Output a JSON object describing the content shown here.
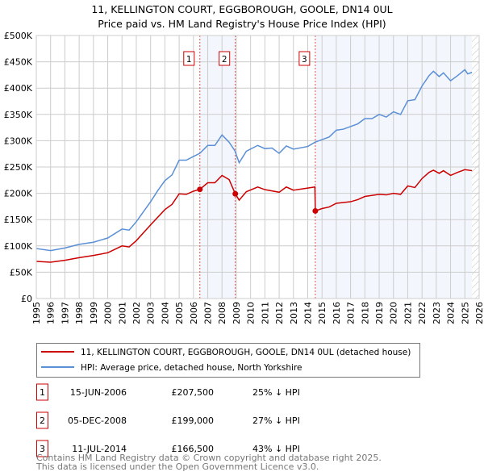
{
  "chart_data": {
    "type": "line",
    "title": "11, KELLINGTON COURT, EGGBOROUGH, GOOLE, DN14 0UL",
    "subtitle": "Price paid vs. HM Land Registry's House Price Index (HPI)",
    "xlim": [
      1995,
      2026
    ],
    "ylim": [
      0,
      500000
    ],
    "x_ticks": [
      "1995",
      "1996",
      "1997",
      "1998",
      "1999",
      "2000",
      "2001",
      "2002",
      "2003",
      "2004",
      "2005",
      "2006",
      "2007",
      "2008",
      "2009",
      "2010",
      "2011",
      "2012",
      "2013",
      "2014",
      "2015",
      "2016",
      "2017",
      "2018",
      "2019",
      "2020",
      "2021",
      "2022",
      "2023",
      "2024",
      "2025",
      "2026"
    ],
    "y_ticks": [
      {
        "v": 0,
        "label": "£0"
      },
      {
        "v": 50000,
        "label": "£50K"
      },
      {
        "v": 100000,
        "label": "£100K"
      },
      {
        "v": 150000,
        "label": "£150K"
      },
      {
        "v": 200000,
        "label": "£200K"
      },
      {
        "v": 250000,
        "label": "£250K"
      },
      {
        "v": 300000,
        "label": "£300K"
      },
      {
        "v": 350000,
        "label": "£350K"
      },
      {
        "v": 400000,
        "label": "£400K"
      },
      {
        "v": 450000,
        "label": "£450K"
      },
      {
        "v": 500000,
        "label": "£500K"
      }
    ],
    "grid": true,
    "series": [
      {
        "name": "11, KELLINGTON COURT, EGGBOROUGH, GOOLE, DN14 0UL (detached house)",
        "color": "#cc0000",
        "x": [
          1995,
          1996,
          1997,
          1998,
          1999,
          2000,
          2001,
          2001.5,
          2002,
          2003,
          2004,
          2004.5,
          2005,
          2005.5,
          2006,
          2006.45,
          2007,
          2007.5,
          2008,
          2008.5,
          2008.93,
          2009.2,
          2009.7,
          2010.5,
          2011,
          2012,
          2012.5,
          2013,
          2014,
          2014.5,
          2014.53,
          2015,
          2015.5,
          2016,
          2017,
          2017.5,
          2018,
          2019,
          2019.5,
          2020,
          2020.5,
          2021,
          2021.5,
          2022,
          2022.5,
          2022.8,
          2023.2,
          2023.5,
          2024,
          2024.5,
          2025,
          2025.5
        ],
        "y": [
          70500,
          69000,
          72600,
          77700,
          81800,
          87000,
          100000,
          98000,
          110000,
          140000,
          169000,
          179000,
          199000,
          198000,
          204000,
          207500,
          220000,
          220000,
          234000,
          226000,
          199000,
          187000,
          203000,
          212000,
          207000,
          202000,
          212000,
          206000,
          210000,
          212000,
          166500,
          171000,
          174000,
          181000,
          184000,
          188000,
          194000,
          198000,
          197000,
          200000,
          198000,
          214000,
          211000,
          228000,
          240000,
          244000,
          238000,
          243000,
          234000,
          240000,
          245000,
          243000
        ]
      },
      {
        "name": "HPI: Average price, detached house, North Yorkshire",
        "color": "#5b8fd6",
        "x": [
          1995,
          1996,
          1997,
          1998,
          1999,
          2000,
          2001,
          2001.5,
          2002,
          2003,
          2003.5,
          2004,
          2004.5,
          2005,
          2005.5,
          2006,
          2006.45,
          2007,
          2007.5,
          2008,
          2008.5,
          2008.9,
          2009.2,
          2009.7,
          2010.5,
          2011,
          2011.5,
          2012,
          2012.5,
          2013,
          2014,
          2014.5,
          2015,
          2015.5,
          2016,
          2016.5,
          2017,
          2017.5,
          2018,
          2018.5,
          2019,
          2019.5,
          2020,
          2020.5,
          2021,
          2021.5,
          2022,
          2022.5,
          2022.8,
          2023.2,
          2023.5,
          2024,
          2024.5,
          2025,
          2025.2,
          2025.5
        ],
        "y": [
          95000,
          91000,
          96000,
          103000,
          107000,
          115000,
          132000,
          130000,
          146000,
          184000,
          205000,
          224000,
          235000,
          263000,
          263000,
          270000,
          276000,
          291000,
          291000,
          311000,
          297000,
          281000,
          258000,
          280000,
          291000,
          285000,
          286000,
          276000,
          290000,
          284000,
          289000,
          297000,
          302000,
          307000,
          320000,
          322000,
          327000,
          332000,
          342000,
          342000,
          350000,
          345000,
          355000,
          350000,
          376000,
          378000,
          404000,
          424000,
          432000,
          422000,
          429000,
          414000,
          424000,
          435000,
          427000,
          430000
        ]
      }
    ],
    "sales": [
      {
        "id": "1",
        "x": 2006.45,
        "date": "15-JUN-2006",
        "price": 207500,
        "price_label": "£207,500",
        "hpi": "25% ↓ HPI"
      },
      {
        "id": "2",
        "x": 2008.93,
        "date": "05-DEC-2008",
        "price": 199000,
        "price_label": "£199,000",
        "hpi": "27% ↓ HPI"
      },
      {
        "id": "3",
        "x": 2014.53,
        "date": "11-JUL-2014",
        "price": 166500,
        "price_label": "£166,500",
        "hpi": "43% ↓ HPI"
      }
    ],
    "shaded_ranges": [
      [
        2006.45,
        2008.93
      ],
      [
        2014.53,
        2025.5
      ]
    ],
    "forecast_from": 2025.5,
    "legend_position": "below"
  },
  "footer": {
    "line1": "Contains HM Land Registry data © Crown copyright and database right 2025.",
    "line2": "This data is licensed under the Open Government Licence v3.0."
  }
}
